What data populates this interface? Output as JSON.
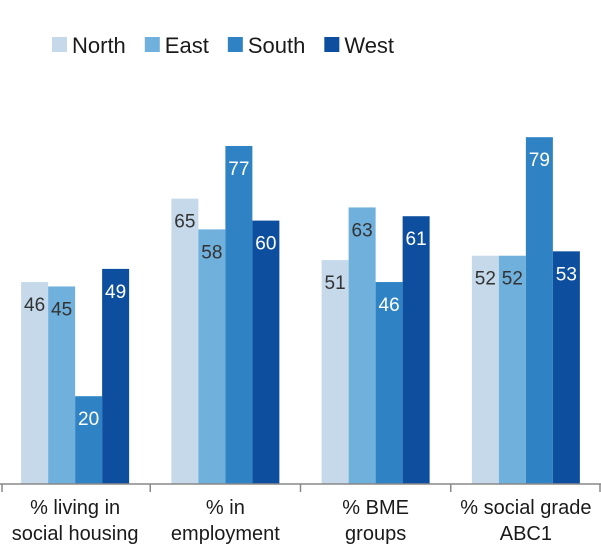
{
  "chart_data": {
    "type": "bar",
    "title": "",
    "xlabel": "",
    "ylabel": "",
    "categories": [
      [
        "% living in",
        "social housing"
      ],
      [
        "% in",
        "employment"
      ],
      [
        "% BME",
        "groups"
      ],
      [
        "% social grade",
        "ABC1"
      ]
    ],
    "series": [
      {
        "name": "North",
        "values": [
          46,
          65,
          51,
          52
        ],
        "color": "#c5d9ea",
        "label_color": "#333333"
      },
      {
        "name": "East",
        "values": [
          45,
          58,
          63,
          52
        ],
        "color": "#6fb0dc",
        "label_color": "#333333"
      },
      {
        "name": "South",
        "values": [
          20,
          77,
          46,
          79
        ],
        "color": "#2f83c4",
        "label_color": "#ffffff"
      },
      {
        "name": "West",
        "values": [
          49,
          60,
          61,
          53
        ],
        "color": "#0d4f9e",
        "label_color": "#ffffff"
      }
    ],
    "ylim": [
      0,
      90
    ],
    "grid": false,
    "legend_position": "top-left"
  }
}
